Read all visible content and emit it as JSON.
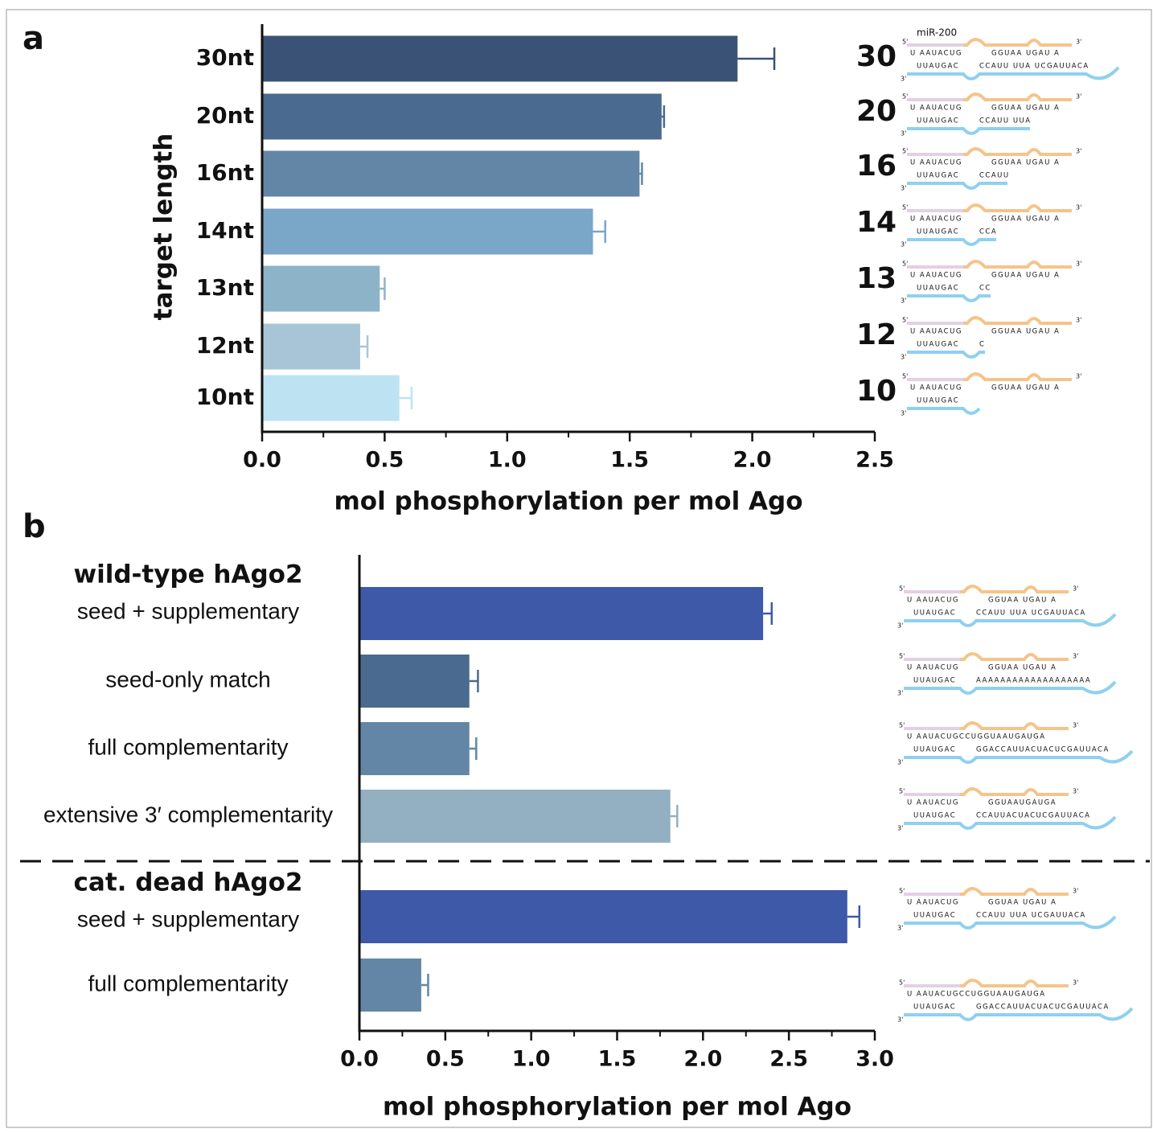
{
  "chart_data": [
    {
      "type": "hbar",
      "panel": "a",
      "ylabel": "target length",
      "xlabel": "mol phosphorylation per mol Ago",
      "categories": [
        "30nt",
        "20nt",
        "16nt",
        "14nt",
        "13nt",
        "12nt",
        "10nt"
      ],
      "values": [
        1.94,
        1.63,
        1.54,
        1.35,
        0.48,
        0.4,
        0.56
      ],
      "errors": [
        0.15,
        0.01,
        0.01,
        0.05,
        0.02,
        0.03,
        0.05
      ],
      "colors": [
        "#3a5275",
        "#4a6a8f",
        "#6386a6",
        "#7aa6c8",
        "#8db3c9",
        "#a8c5d8",
        "#bde3f2"
      ],
      "xlim": [
        0,
        2.5
      ],
      "xticks": [
        {
          "value": 0,
          "label": "0.0"
        },
        0.5,
        {
          "value": 1,
          "label": "1.0"
        },
        1.5,
        {
          "value": 2,
          "label": "2.0"
        },
        2.5
      ]
    },
    {
      "type": "hbar",
      "panel": "b",
      "xlabel": "mol phosphorylation per mol Ago",
      "groups": [
        "wild-type hAgo2",
        "cat. dead hAgo2"
      ],
      "categories": [
        "seed + supplementary",
        "seed-only match",
        "full complementarity",
        "extensive 3′ complementarity",
        "seed + supplementary",
        "full complementarity"
      ],
      "values": [
        2.35,
        0.64,
        0.64,
        1.81,
        2.84,
        0.36
      ],
      "errors": [
        0.05,
        0.05,
        0.04,
        0.04,
        0.07,
        0.04
      ],
      "colors": [
        "#3d59a8",
        "#4a6a8f",
        "#6386a6",
        "#93afc2",
        "#3d59a8",
        "#6386a6"
      ],
      "xlim": [
        0,
        3
      ],
      "xticks": [
        {
          "value": 0,
          "label": "0.0"
        },
        0.5,
        {
          "value": 1,
          "label": "1.0"
        },
        1.5,
        {
          "value": 2,
          "label": "2.0"
        },
        2.5,
        {
          "value": 3,
          "label": "3.0"
        }
      ]
    }
  ],
  "diagrams": {
    "mirna": "miR-200",
    "five": "5'",
    "three": "3'",
    "a": [
      {
        "number": "30",
        "guide": "U AAUACUG",
        "loop": "GGUAA UGAU A",
        "seed": "UUAUGAC",
        "tail": "CCAUU UUA UCGAUUACA"
      },
      {
        "number": "20",
        "guide": "U AAUACUG",
        "loop": "GGUAA UGAU A",
        "seed": "UUAUGAC",
        "tail": "CCAUU UUA"
      },
      {
        "number": "16",
        "guide": "U AAUACUG",
        "loop": "GGUAA UGAU A",
        "seed": "UUAUGAC",
        "tail": "CCAUU"
      },
      {
        "number": "14",
        "guide": "U AAUACUG",
        "loop": "GGUAA UGAU A",
        "seed": "UUAUGAC",
        "tail": "CCA"
      },
      {
        "number": "13",
        "guide": "U AAUACUG",
        "loop": "GGUAA UGAU A",
        "seed": "UUAUGAC",
        "tail": "CC"
      },
      {
        "number": "12",
        "guide": "U AAUACUG",
        "loop": "GGUAA UGAU A",
        "seed": "UUAUGAC",
        "tail": "C"
      },
      {
        "number": "10",
        "guide": "U AAUACUG",
        "loop": "GGUAA UGAU A",
        "seed": "UUAUGAC"
      }
    ],
    "b": [
      {
        "guide": "U AAUACUG",
        "loop": "GGUAA UGAU A",
        "seed": "UUAUGAC",
        "tail": "CCAUU UUA UCGAUUACA"
      },
      {
        "guide": "U AAUACUG",
        "loop": "GGUAA UGAU A",
        "seed": "UUAUGAC",
        "tail": "AAAAAAAAAAAAAAAAAAA"
      },
      {
        "guide": "U AAUACUGCCUGGUAAUGAUGA",
        "seed": "UUAUGAC",
        "tail": "GGACCAUUACUACUCGAUUACA"
      },
      {
        "guide": "U AAUACUG",
        "loop": "GGUAAUGAUGA",
        "seed": "UUAUGAC",
        "tail": "CCAUUACUACUCGAUUACA"
      },
      {
        "guide": "U AAUACUG",
        "loop": "GGUAA UGAU A",
        "seed": "UUAUGAC",
        "tail": "CCAUU UUA UCGAUUACA"
      },
      {
        "guide": "U AAUACUGCCUGGUAAUGAUGA",
        "seed": "UUAUGAC",
        "tail": "GGACCAUUACUACUCGAUUACA"
      }
    ]
  }
}
